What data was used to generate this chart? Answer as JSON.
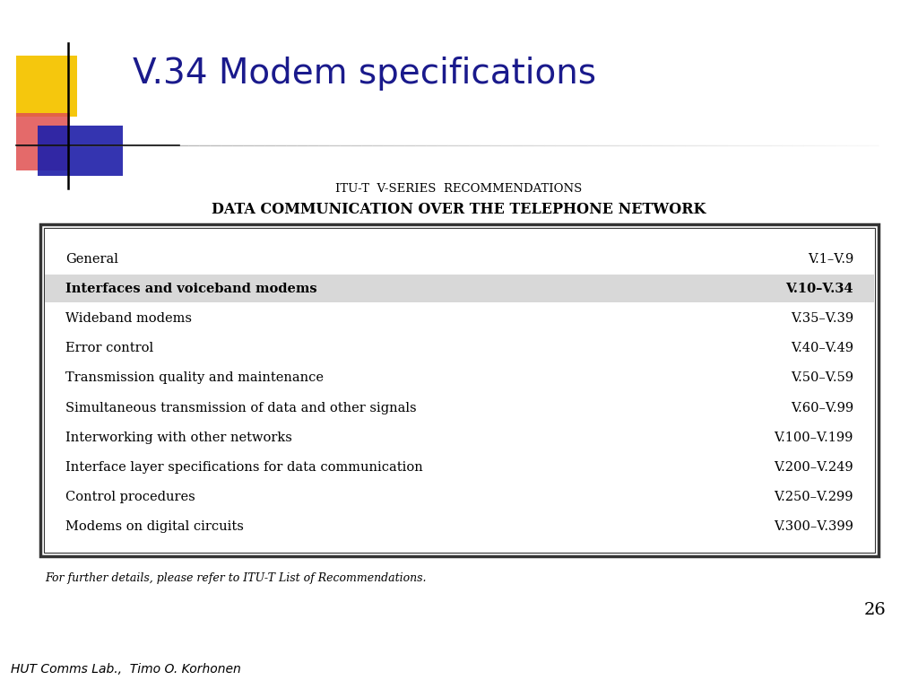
{
  "title": "V.34 Modem specifications",
  "title_color": "#1a1a8c",
  "title_fontsize": 28,
  "subtitle1": "ITU-T  V-SERIES  RECOMMENDATIONS",
  "subtitle2": "DATA COMMUNICATION OVER THE TELEPHONE NETWORK",
  "table_rows": [
    {
      "label": "General",
      "range": "V.1–V.9",
      "bold": false,
      "highlight": false
    },
    {
      "label": "Interfaces and voiceband modems",
      "range": "V.10–V.34",
      "bold": true,
      "highlight": true
    },
    {
      "label": "Wideband modems",
      "range": "V.35–V.39",
      "bold": false,
      "highlight": false
    },
    {
      "label": "Error control",
      "range": "V.40–V.49",
      "bold": false,
      "highlight": false
    },
    {
      "label": "Transmission quality and maintenance",
      "range": "V.50–V.59",
      "bold": false,
      "highlight": false
    },
    {
      "label": "Simultaneous transmission of data and other signals",
      "range": "V.60–V.99",
      "bold": false,
      "highlight": false
    },
    {
      "label": "Interworking with other networks",
      "range": "V.100–V.199",
      "bold": false,
      "highlight": false
    },
    {
      "label": "Interface layer specifications for data communication",
      "range": "V.200–V.249",
      "bold": false,
      "highlight": false
    },
    {
      "label": "Control procedures",
      "range": "V.250–V.299",
      "bold": false,
      "highlight": false
    },
    {
      "label": "Modems on digital circuits",
      "range": "V.300–V.399",
      "bold": false,
      "highlight": false
    }
  ],
  "footnote": "For further details, please refer to ITU-T List of Recommendations.",
  "page_number": "26",
  "footer": "HUT Comms Lab.,  Timo O. Korhonen",
  "bg_color": "#ffffff",
  "highlight_color": "#d8d8d8",
  "table_border_color": "#333333",
  "logo_yellow": "#f5c400",
  "logo_red": "#e05050",
  "logo_blue": "#2222aa"
}
